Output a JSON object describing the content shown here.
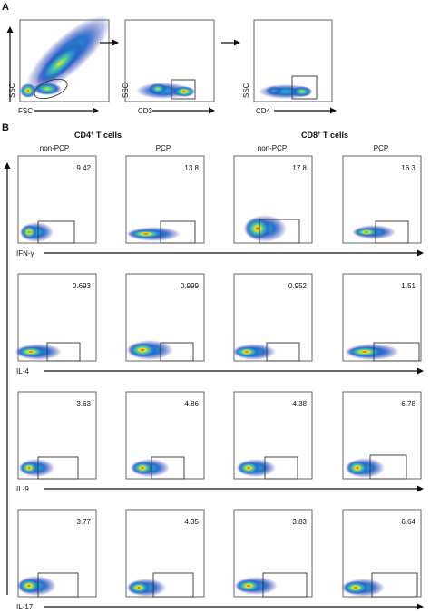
{
  "panels": {
    "a_label": "A",
    "b_label": "B"
  },
  "gating": {
    "plots": [
      {
        "xlabel": "FSC",
        "ylabel": "SSC"
      },
      {
        "xlabel": "CD3",
        "ylabel": "SSC"
      },
      {
        "xlabel": "CD4",
        "ylabel": "SSC"
      }
    ]
  },
  "groups": [
    {
      "label_main": "CD4",
      "label_sup": "+",
      "label_rest": " T cells"
    },
    {
      "label_main": "CD8",
      "label_sup": "+",
      "label_rest": " T cells"
    }
  ],
  "columns": [
    "non-PCP",
    "PCP",
    "non-PCP",
    "PCP"
  ],
  "rows": [
    {
      "marker": "IFN-γ",
      "values": [
        "9.42",
        "13.8",
        "17.8",
        "16.3"
      ]
    },
    {
      "marker": "IL-4",
      "values": [
        "0.693",
        "0.999",
        "0.952",
        "1.51"
      ]
    },
    {
      "marker": "IL-9",
      "values": [
        "3.63",
        "4.86",
        "4.38",
        "6.78"
      ]
    },
    {
      "marker": "IL-17",
      "values": [
        "3.77",
        "4.35",
        "3.83",
        "6.64"
      ]
    }
  ],
  "colors": {
    "density_low": "#2c2ca8",
    "density_mid": "#22b3c8",
    "density_high": "#f2e41a",
    "density_peak": "#e03a1a"
  }
}
